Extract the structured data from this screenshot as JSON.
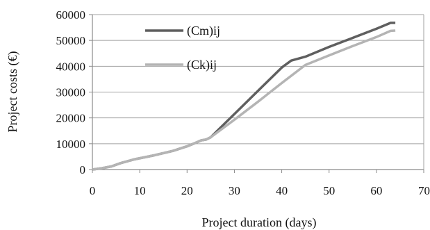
{
  "chart_data": {
    "type": "line",
    "title": "",
    "xlabel": "Project duration (days)",
    "ylabel": "Project costs (€)",
    "xlim": [
      0,
      70
    ],
    "ylim": [
      0,
      60000
    ],
    "xticks": [
      0,
      10,
      20,
      30,
      40,
      50,
      60,
      70
    ],
    "yticks": [
      0,
      10000,
      20000,
      30000,
      40000,
      50000,
      60000
    ],
    "xtick_labels": [
      "0",
      "10",
      "20",
      "30",
      "40",
      "50",
      "60",
      "70"
    ],
    "ytick_labels": [
      "0",
      "10000",
      "20000",
      "30000",
      "40000",
      "50000",
      "60000"
    ],
    "grid": "horizontal",
    "legend_position": "top-left",
    "series": [
      {
        "name": "(Cm)ij",
        "color": "#5f5f5f",
        "points": [
          [
            0,
            0
          ],
          [
            2,
            500
          ],
          [
            4,
            1200
          ],
          [
            6,
            2500
          ],
          [
            9,
            4000
          ],
          [
            13,
            5500
          ],
          [
            17,
            7200
          ],
          [
            20,
            9000
          ],
          [
            22,
            10500
          ],
          [
            23,
            11300
          ],
          [
            24,
            11600
          ],
          [
            25,
            12500
          ],
          [
            30,
            21500
          ],
          [
            35,
            30500
          ],
          [
            40,
            39500
          ],
          [
            42,
            42200
          ],
          [
            45,
            43700
          ],
          [
            50,
            47500
          ],
          [
            55,
            51000
          ],
          [
            60,
            54500
          ],
          [
            63,
            56800
          ],
          [
            64,
            56800
          ]
        ]
      },
      {
        "name": "(Ck)ij",
        "color": "#b4b4b4",
        "points": [
          [
            0,
            0
          ],
          [
            2,
            500
          ],
          [
            4,
            1200
          ],
          [
            6,
            2500
          ],
          [
            9,
            4000
          ],
          [
            13,
            5500
          ],
          [
            17,
            7200
          ],
          [
            20,
            9000
          ],
          [
            22,
            10500
          ],
          [
            23,
            11300
          ],
          [
            24,
            11600
          ],
          [
            25,
            12500
          ],
          [
            30,
            19300
          ],
          [
            35,
            26300
          ],
          [
            40,
            33500
          ],
          [
            45,
            40500
          ],
          [
            50,
            44200
          ],
          [
            55,
            47800
          ],
          [
            60,
            51300
          ],
          [
            63,
            53700
          ],
          [
            64,
            53800
          ]
        ]
      }
    ]
  }
}
